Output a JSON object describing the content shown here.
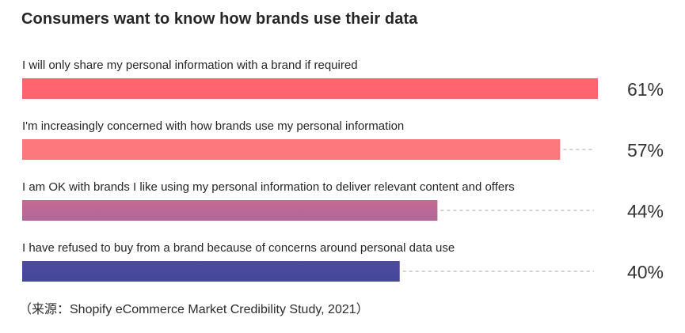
{
  "title": "Consumers want to know how brands use their data",
  "source": "（来源：Shopify eCommerce Market Credibility Study, 2021）",
  "chart_data": {
    "type": "bar",
    "orientation": "horizontal",
    "title": "Consumers want to know how brands use their data",
    "categories": [
      "I will only share my personal information with a brand if required",
      "I'm increasingly concerned with how brands use my personal information",
      "I am OK with brands I like using my personal information to deliver relevant content and offers",
      "I have refused to buy from a brand because of concerns around personal data use"
    ],
    "values": [
      61,
      57,
      44,
      40
    ],
    "value_labels": [
      "61%",
      "57%",
      "44%",
      "40%"
    ],
    "colors": [
      "#fe656f",
      "#fd787c",
      "#c46a92",
      "#4e4a9e"
    ],
    "gradient_ends": [
      null,
      null,
      "#b1679a",
      "#44479b"
    ],
    "unit": "%",
    "grid": false,
    "guide_lines": "dashed"
  }
}
